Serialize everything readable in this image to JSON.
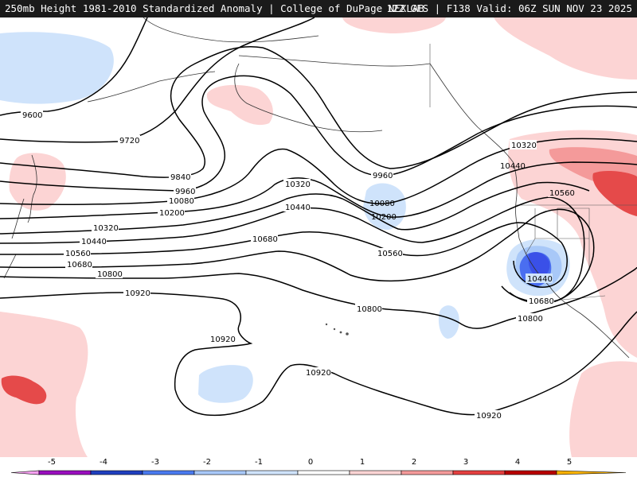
{
  "header": {
    "left_title": "250mb Height 1981-2010 Standardized Anomaly | College of DuPage NEXLAB",
    "right_title": "12Z GFS | F138 Valid: 06Z SUN NOV 23 2025"
  },
  "contours": {
    "labels": [
      "9600",
      "9720",
      "9840",
      "9960",
      "10080",
      "10200",
      "10320",
      "10440",
      "10560",
      "10680",
      "10800",
      "10920",
      "9960",
      "10080",
      "10200",
      "10320",
      "10440",
      "10560",
      "10680",
      "10800",
      "10920",
      "10320",
      "10440",
      "10560",
      "10440",
      "10680",
      "10800",
      "10920",
      "10920"
    ]
  },
  "legend": {
    "ticks": [
      "-5",
      "-4",
      "-3",
      "-2",
      "-1",
      "0",
      "1",
      "2",
      "3",
      "4",
      "5"
    ],
    "colors": [
      "#f5a0f0",
      "#9a0fbf",
      "#1f3fbf",
      "#4a7af0",
      "#a8c8f8",
      "#cfe3fb",
      "#ffffff",
      "#fcd4d4",
      "#f49a9a",
      "#e54040",
      "#b80000",
      "#f7b000"
    ]
  },
  "fills": {
    "neg_weak": "#cfe3fb",
    "neg_mid": "#a8c8f8",
    "neg_strong": "#4a6ef0",
    "neg_core": "#3a50e8",
    "pos_weak": "#fcd4d4",
    "pos_mid": "#f49a9a",
    "pos_strong": "#e54a4a"
  }
}
